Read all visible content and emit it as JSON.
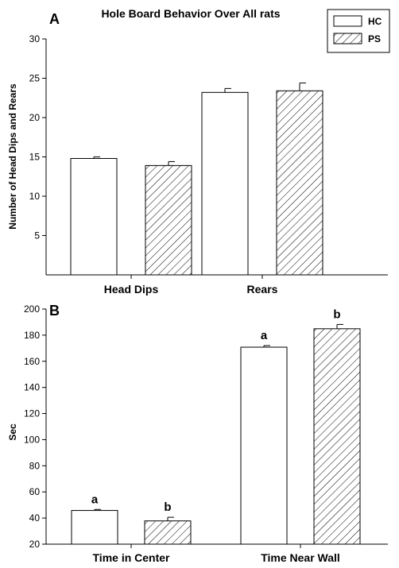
{
  "chart_data": [
    {
      "type": "bar",
      "panel_label": "A",
      "title": "Hole Board Behavior Over All rats",
      "ylabel": "Number of Head Dips and Rears",
      "xlabel": "",
      "ylim": [
        0,
        30
      ],
      "yticks": [
        5,
        10,
        15,
        20,
        25,
        30
      ],
      "categories": [
        "Head Dips",
        "Rears"
      ],
      "series": [
        {
          "name": "HC",
          "fill": "white",
          "values": [
            14.8,
            23.2
          ],
          "errors": [
            0.2,
            0.5
          ],
          "sig_labels": [
            "",
            ""
          ]
        },
        {
          "name": "PS",
          "fill": "hatch",
          "values": [
            13.9,
            23.4
          ],
          "errors": [
            0.5,
            1.0
          ],
          "sig_labels": [
            "",
            ""
          ]
        }
      ],
      "legend": {
        "position": "top-right",
        "entries": [
          "HC",
          "PS"
        ]
      }
    },
    {
      "type": "bar",
      "panel_label": "B",
      "title": "",
      "ylabel": "Sec",
      "xlabel": "",
      "ylim": [
        20,
        200
      ],
      "yticks": [
        20,
        40,
        60,
        80,
        100,
        120,
        140,
        160,
        180,
        200
      ],
      "categories": [
        "Time in Center",
        "Time Near Wall"
      ],
      "series": [
        {
          "name": "HC",
          "fill": "white",
          "values": [
            45.8,
            170.8
          ],
          "errors": [
            0.8,
            1.2
          ],
          "sig_labels": [
            "a",
            "a"
          ]
        },
        {
          "name": "PS",
          "fill": "hatch",
          "values": [
            37.8,
            184.9
          ],
          "errors": [
            2.8,
            3.3
          ],
          "sig_labels": [
            "b",
            "b"
          ]
        }
      ]
    }
  ]
}
